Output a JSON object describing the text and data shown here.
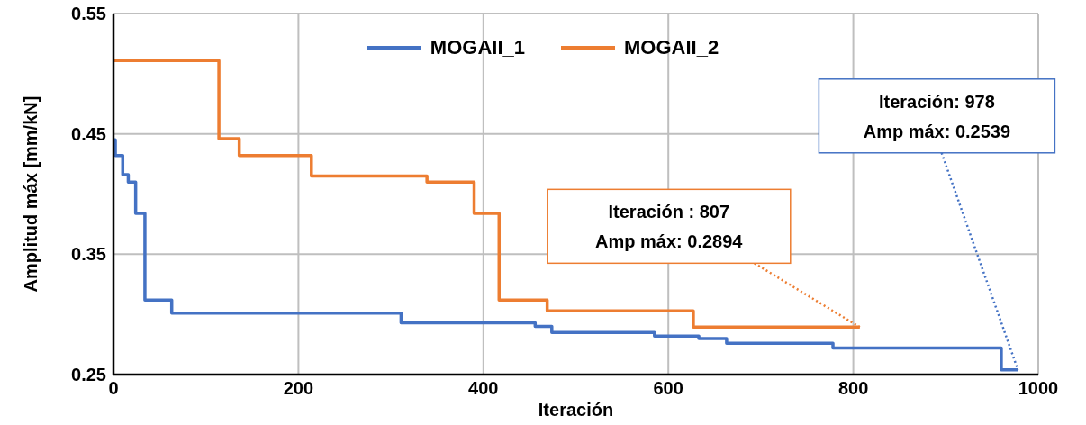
{
  "chart_data": {
    "type": "step",
    "xlabel": "Iteración",
    "ylabel": "Amplitud máx [mm/kN]",
    "xlim": [
      0,
      1000
    ],
    "xticks": [
      0,
      200,
      400,
      600,
      800,
      1000
    ],
    "ylim": [
      0.25,
      0.55
    ],
    "yticks": [
      0.25,
      0.35,
      0.45,
      0.55
    ],
    "grid": true,
    "legend": "top",
    "line_style": "solid",
    "marker": "none",
    "series": [
      {
        "name": "MOGAII_1",
        "color": "#4472c4",
        "x": [
          0,
          2,
          10,
          16,
          24,
          34,
          63,
          311,
          456,
          474,
          585,
          633,
          663,
          778,
          960,
          978
        ],
        "values": [
          0.445,
          0.432,
          0.416,
          0.41,
          0.384,
          0.312,
          0.301,
          0.293,
          0.29,
          0.285,
          0.282,
          0.28,
          0.276,
          0.272,
          0.2539,
          0.2539
        ]
      },
      {
        "name": "MOGAII_2",
        "color": "#ed7d31",
        "x": [
          0,
          114,
          136,
          214,
          339,
          390,
          417,
          469,
          627,
          807
        ],
        "values": [
          0.511,
          0.446,
          0.432,
          0.415,
          0.41,
          0.384,
          0.312,
          0.303,
          0.2894,
          0.2894
        ]
      }
    ],
    "annotations": [
      {
        "text": "Iteración : 807\nAmp máx: 0.2894",
        "x": 807,
        "y": 0.2894
      },
      {
        "text": "Iteración:  978\nAmp máx: 0.2539",
        "x": 978,
        "y": 0.2539
      }
    ]
  }
}
